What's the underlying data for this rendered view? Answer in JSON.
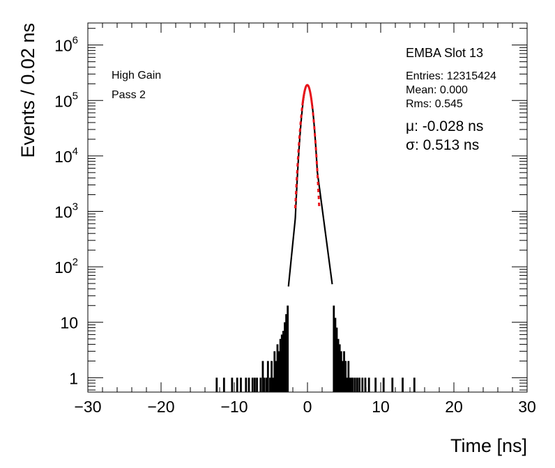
{
  "chart_data": {
    "type": "bar",
    "xlabel": "Time [ns]",
    "ylabel": "Events / 0.02 ns",
    "xlim": [
      -30,
      30
    ],
    "ylim": [
      0.55,
      2500000
    ],
    "yscale": "log",
    "xticks": [
      -30,
      -20,
      -10,
      0,
      10,
      20,
      30
    ],
    "xtick_labels": [
      "−30",
      "−20",
      "−10",
      "0",
      "10",
      "20",
      "30"
    ],
    "ytick_labels": [
      {
        "base": "1",
        "exp": "",
        "value": 1
      },
      {
        "base": "10",
        "exp": "",
        "value": 10
      },
      {
        "base": "10",
        "exp": "2",
        "value": 100
      },
      {
        "base": "10",
        "exp": "3",
        "value": 1000
      },
      {
        "base": "10",
        "exp": "4",
        "value": 10000
      },
      {
        "base": "10",
        "exp": "5",
        "value": 100000
      },
      {
        "base": "10",
        "exp": "6",
        "value": 1000000
      }
    ],
    "annotations": {
      "gain": "High Gain",
      "pass": "Pass 2"
    },
    "stats": {
      "title": "EMBA Slot 13",
      "entries": "Entries: 12315424",
      "mean": "Mean: 0.000",
      "rms": "Rms: 0.545"
    },
    "fit": {
      "mu_text": "μ: -0.028 ns",
      "sigma_text": "σ: 0.513 ns",
      "mu": -0.028,
      "sigma": 0.513,
      "peak": 190000,
      "color": "#e8131a"
    },
    "histogram_color": "#000000",
    "core": {
      "x_range": [
        -2.6,
        3.4
      ],
      "left_slope_per_ns": 1.25,
      "right_slope_per_ns": 0.95,
      "peak_x": 0.0,
      "peak_value": 190000
    },
    "tail_bins": [
      [
        -12.4,
        1
      ],
      [
        -11.4,
        1
      ],
      [
        -10.3,
        1
      ],
      [
        -9.6,
        1
      ],
      [
        -9.1,
        1
      ],
      [
        -8.4,
        1
      ],
      [
        -8.0,
        1
      ],
      [
        -7.5,
        1
      ],
      [
        -7.2,
        1
      ],
      [
        -6.9,
        1
      ],
      [
        -6.4,
        1
      ],
      [
        -6.1,
        2
      ],
      [
        -5.9,
        1
      ],
      [
        -5.6,
        1
      ],
      [
        -5.4,
        2
      ],
      [
        -5.1,
        1
      ],
      [
        -4.9,
        2
      ],
      [
        -4.7,
        1
      ],
      [
        -4.5,
        3
      ],
      [
        -4.3,
        2
      ],
      [
        -4.1,
        4
      ],
      [
        -3.9,
        3
      ],
      [
        -3.7,
        5
      ],
      [
        -3.5,
        6
      ],
      [
        -3.3,
        7
      ],
      [
        -3.1,
        10
      ],
      [
        -2.9,
        14
      ],
      [
        -2.7,
        20
      ],
      [
        3.6,
        20
      ],
      [
        3.8,
        12
      ],
      [
        4.0,
        8
      ],
      [
        4.2,
        5
      ],
      [
        4.4,
        4
      ],
      [
        4.6,
        3
      ],
      [
        4.8,
        2
      ],
      [
        5.0,
        3
      ],
      [
        5.2,
        2
      ],
      [
        5.4,
        1
      ],
      [
        5.6,
        2
      ],
      [
        5.8,
        1
      ],
      [
        6.0,
        1
      ],
      [
        6.2,
        1
      ],
      [
        6.5,
        1
      ],
      [
        6.8,
        1
      ],
      [
        7.1,
        1
      ],
      [
        7.5,
        1
      ],
      [
        7.9,
        1
      ],
      [
        8.4,
        1
      ],
      [
        9.3,
        1
      ],
      [
        10.4,
        1
      ],
      [
        11.6,
        1
      ],
      [
        13.0,
        1
      ],
      [
        14.6,
        1
      ]
    ]
  }
}
